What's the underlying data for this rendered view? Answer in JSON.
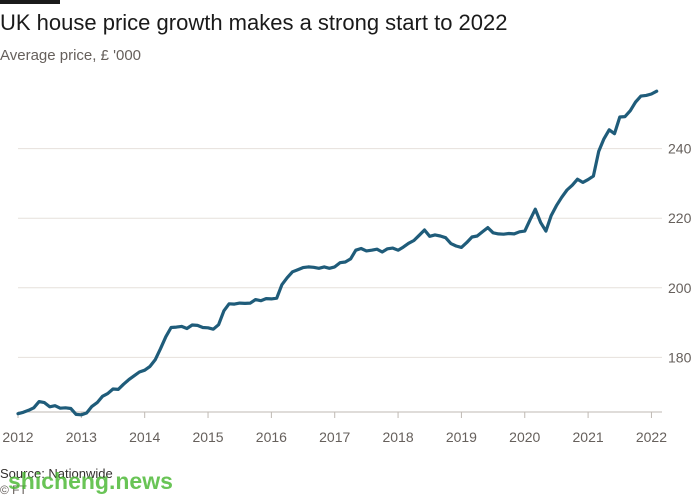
{
  "title": "UK house price growth makes a strong start to 2022",
  "subtitle": "Average price, £ '000",
  "source": "Source: Nationwide",
  "copyright": "© FT",
  "watermark": "shicheng.news",
  "colors": {
    "line": "#1f5c7a",
    "grid": "#e6e1dc",
    "text": "#66605c",
    "watermark": "#49b832"
  },
  "chart_data": {
    "type": "line",
    "title": "UK house price growth makes a strong start to 2022",
    "ylabel": "Average price, £ '000",
    "xlabel": "",
    "x_ticks": [
      "2012",
      "2013",
      "2014",
      "2015",
      "2016",
      "2017",
      "2018",
      "2019",
      "2020",
      "2021",
      "2022"
    ],
    "y_ticks": [
      180,
      200,
      220,
      240
    ],
    "y_axis_side": "right",
    "xlim": [
      "2012-01",
      "2022-03"
    ],
    "ylim": [
      162,
      258
    ],
    "grid": true,
    "series": [
      {
        "x": [
          "2012-01",
          "2012-02",
          "2012-03",
          "2012-04",
          "2012-05",
          "2012-06",
          "2012-07",
          "2012-08",
          "2012-09",
          "2012-10",
          "2012-11",
          "2012-12",
          "2013-01",
          "2013-02",
          "2013-03",
          "2013-04",
          "2013-05",
          "2013-06",
          "2013-07",
          "2013-08",
          "2013-09",
          "2013-10",
          "2013-11",
          "2013-12",
          "2014-01",
          "2014-02",
          "2014-03",
          "2014-04",
          "2014-05",
          "2014-06",
          "2014-07",
          "2014-08",
          "2014-09",
          "2014-10",
          "2014-11",
          "2014-12",
          "2015-01",
          "2015-02",
          "2015-03",
          "2015-04",
          "2015-05",
          "2015-06",
          "2015-07",
          "2015-08",
          "2015-09",
          "2015-10",
          "2015-11",
          "2015-12",
          "2016-01",
          "2016-02",
          "2016-03",
          "2016-04",
          "2016-05",
          "2016-06",
          "2016-07",
          "2016-08",
          "2016-09",
          "2016-10",
          "2016-11",
          "2016-12",
          "2017-01",
          "2017-02",
          "2017-03",
          "2017-04",
          "2017-05",
          "2017-06",
          "2017-07",
          "2017-08",
          "2017-09",
          "2017-10",
          "2017-11",
          "2017-12",
          "2018-01",
          "2018-02",
          "2018-03",
          "2018-04",
          "2018-05",
          "2018-06",
          "2018-07",
          "2018-08",
          "2018-09",
          "2018-10",
          "2018-11",
          "2018-12",
          "2019-01",
          "2019-02",
          "2019-03",
          "2019-04",
          "2019-05",
          "2019-06",
          "2019-07",
          "2019-08",
          "2019-09",
          "2019-10",
          "2019-11",
          "2019-12",
          "2020-01",
          "2020-02",
          "2020-03",
          "2020-04",
          "2020-05",
          "2020-06",
          "2020-07",
          "2020-08",
          "2020-09",
          "2020-10",
          "2020-11",
          "2020-12",
          "2021-01",
          "2021-02",
          "2021-03",
          "2021-04",
          "2021-05",
          "2021-06",
          "2021-07",
          "2021-08",
          "2021-09",
          "2021-10",
          "2021-11",
          "2021-12",
          "2022-01",
          "2022-02"
        ],
        "values": [
          163.8,
          164.2,
          164.8,
          165.5,
          167.3,
          167.0,
          165.8,
          166.1,
          165.4,
          165.5,
          165.3,
          163.6,
          163.5,
          164.0,
          165.9,
          167.0,
          168.8,
          169.6,
          170.9,
          170.8,
          172.3,
          173.6,
          174.7,
          175.8,
          176.3,
          177.4,
          179.3,
          182.5,
          185.9,
          188.6,
          188.7,
          188.9,
          188.3,
          189.3,
          189.2,
          188.6,
          188.5,
          188.1,
          189.4,
          193.4,
          195.4,
          195.3,
          195.6,
          195.5,
          195.6,
          196.6,
          196.3,
          196.9,
          196.8,
          197.0,
          200.9,
          202.9,
          204.6,
          205.2,
          205.8,
          206.0,
          205.9,
          205.6,
          206.0,
          205.6,
          206.0,
          207.2,
          207.4,
          208.3,
          210.8,
          211.3,
          210.6,
          210.8,
          211.1,
          210.3,
          211.2,
          211.4,
          210.8,
          211.7,
          212.8,
          213.6,
          215.1,
          216.6,
          214.8,
          215.2,
          214.9,
          214.4,
          212.7,
          212.0,
          211.6,
          213.0,
          214.6,
          214.9,
          216.1,
          217.3,
          215.8,
          215.5,
          215.4,
          215.6,
          215.5,
          216.1,
          216.3,
          219.5,
          222.6,
          218.8,
          216.3,
          220.7,
          223.6,
          226.0,
          228.1,
          229.5,
          231.2,
          230.3,
          231.1,
          232.1,
          239.2,
          242.8,
          245.4,
          244.3,
          249.1,
          249.2,
          250.9,
          253.4,
          255.1,
          255.3,
          255.7,
          256.5
        ]
      }
    ]
  }
}
